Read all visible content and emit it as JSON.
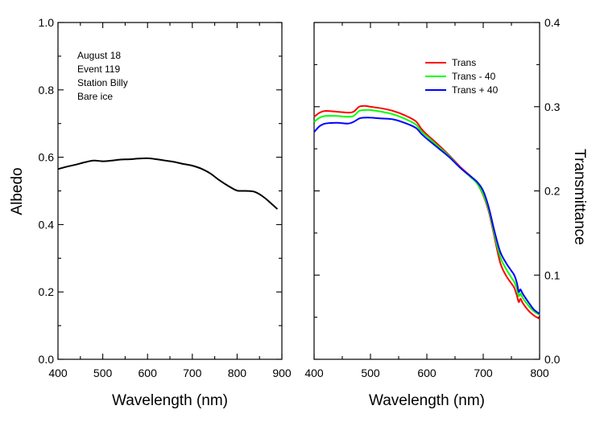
{
  "chart_data": [
    {
      "type": "line",
      "xlabel": "Wavelength (nm)",
      "ylabel": "Albedo",
      "xlim": [
        400,
        900
      ],
      "ylim": [
        0.0,
        1.0
      ],
      "x_ticks": [
        "400",
        "500",
        "600",
        "700",
        "800",
        "900"
      ],
      "y_ticks": [
        "0.0",
        "0.2",
        "0.4",
        "0.6",
        "0.8",
        "1.0"
      ],
      "grid": false,
      "annotation_lines": [
        "August 18",
        "Event 119",
        "Station Billy",
        "Bare ice"
      ],
      "series": [
        {
          "color": "#000000",
          "x": [
            400,
            420,
            440,
            460,
            480,
            500,
            520,
            540,
            560,
            580,
            600,
            620,
            640,
            660,
            680,
            700,
            720,
            740,
            760,
            780,
            800,
            820,
            840,
            860,
            880,
            890
          ],
          "y": [
            0.565,
            0.572,
            0.578,
            0.585,
            0.59,
            0.588,
            0.59,
            0.593,
            0.594,
            0.596,
            0.597,
            0.594,
            0.59,
            0.586,
            0.58,
            0.575,
            0.566,
            0.552,
            0.532,
            0.515,
            0.501,
            0.5,
            0.497,
            0.481,
            0.458,
            0.446
          ]
        }
      ]
    },
    {
      "type": "line",
      "xlabel": "Wavelength (nm)",
      "ylabel": "Transmittance",
      "xlim": [
        400,
        800
      ],
      "ylim": [
        0.0,
        0.4
      ],
      "x_ticks": [
        "400",
        "500",
        "600",
        "700",
        "800"
      ],
      "y_ticks": [
        "0.0",
        "0.1",
        "0.2",
        "0.3",
        "0.4"
      ],
      "grid": false,
      "legend_position": "top-right",
      "series": [
        {
          "name": "Trans",
          "color": "#ff0000",
          "x": [
            400,
            410,
            420,
            440,
            460,
            470,
            480,
            490,
            500,
            520,
            540,
            560,
            580,
            590,
            600,
            620,
            640,
            660,
            680,
            690,
            700,
            710,
            720,
            730,
            740,
            750,
            755,
            760,
            763,
            766,
            770,
            780,
            790,
            800
          ],
          "y": [
            0.288,
            0.293,
            0.295,
            0.294,
            0.293,
            0.294,
            0.3,
            0.301,
            0.3,
            0.298,
            0.295,
            0.29,
            0.283,
            0.274,
            0.267,
            0.255,
            0.242,
            0.228,
            0.216,
            0.208,
            0.195,
            0.175,
            0.145,
            0.115,
            0.1,
            0.09,
            0.085,
            0.075,
            0.068,
            0.072,
            0.067,
            0.058,
            0.052,
            0.048
          ]
        },
        {
          "name": "Trans - 40",
          "color": "#00ff00",
          "x": [
            400,
            410,
            420,
            440,
            460,
            470,
            480,
            490,
            500,
            520,
            540,
            560,
            580,
            590,
            600,
            620,
            640,
            660,
            680,
            690,
            700,
            710,
            720,
            730,
            740,
            750,
            755,
            760,
            763,
            766,
            770,
            780,
            790,
            800
          ],
          "y": [
            0.282,
            0.287,
            0.289,
            0.289,
            0.288,
            0.289,
            0.295,
            0.296,
            0.296,
            0.294,
            0.291,
            0.286,
            0.279,
            0.271,
            0.265,
            0.253,
            0.241,
            0.227,
            0.215,
            0.208,
            0.196,
            0.177,
            0.148,
            0.122,
            0.108,
            0.097,
            0.092,
            0.083,
            0.075,
            0.078,
            0.073,
            0.064,
            0.057,
            0.053
          ]
        },
        {
          "name": "Trans + 40",
          "color": "#0000ff",
          "x": [
            400,
            410,
            420,
            440,
            460,
            470,
            480,
            490,
            500,
            520,
            540,
            560,
            580,
            590,
            600,
            620,
            640,
            660,
            680,
            690,
            700,
            710,
            720,
            730,
            740,
            750,
            755,
            760,
            763,
            766,
            770,
            780,
            790,
            800
          ],
          "y": [
            0.27,
            0.277,
            0.28,
            0.281,
            0.28,
            0.282,
            0.286,
            0.287,
            0.287,
            0.286,
            0.285,
            0.281,
            0.275,
            0.268,
            0.262,
            0.251,
            0.24,
            0.227,
            0.216,
            0.21,
            0.2,
            0.18,
            0.152,
            0.128,
            0.115,
            0.105,
            0.1,
            0.09,
            0.08,
            0.083,
            0.078,
            0.068,
            0.059,
            0.054
          ]
        }
      ]
    }
  ]
}
